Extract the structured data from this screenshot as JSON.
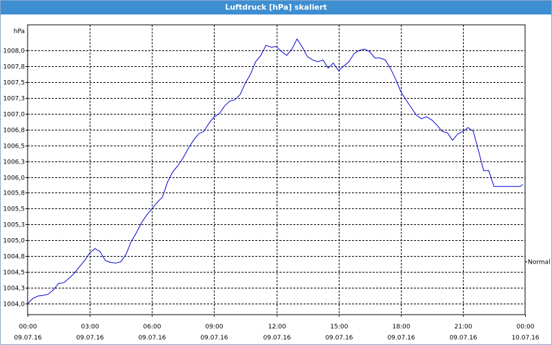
{
  "window": {
    "title": "Luftdruck [hPa] skaliert"
  },
  "chart_data": {
    "type": "line",
    "title": "Luftdruck [hPa] skaliert",
    "ylabel": "hPa",
    "xlabel": "",
    "ylim": [
      1003.8,
      1008.2
    ],
    "xlim": [
      0,
      24
    ],
    "grid": true,
    "line_color": "#0000cc",
    "y_ticks": [
      "1004,0",
      "1004,3",
      "1004,5",
      "1004,8",
      "1005,0",
      "1005,3",
      "1005,5",
      "1005,8",
      "1006,0",
      "1006,3",
      "1006,5",
      "1006,8",
      "1007,0",
      "1007,3",
      "1007,5",
      "1007,8",
      "1008,0"
    ],
    "x_ticks": [
      {
        "time": "00:00",
        "date": "09.07.16"
      },
      {
        "time": "03:00",
        "date": "09.07.16"
      },
      {
        "time": "06:00",
        "date": "09.07.16"
      },
      {
        "time": "09:00",
        "date": "09.07.16"
      },
      {
        "time": "12:00",
        "date": "09.07.16"
      },
      {
        "time": "15:00",
        "date": "09.07.16"
      },
      {
        "time": "18:00",
        "date": "09.07.16"
      },
      {
        "time": "21:00",
        "date": "09.07.16"
      },
      {
        "time": "00:00",
        "date": "10.07.16"
      }
    ],
    "annotation": "Normal",
    "annotation_value": 1004.67,
    "series": [
      {
        "x": [
          0,
          0.25,
          0.5,
          0.75,
          1.0,
          1.25,
          1.5,
          1.75,
          2.0,
          2.25,
          2.5,
          2.75,
          3.0,
          3.25,
          3.5,
          3.75,
          4.0,
          4.25,
          4.5,
          4.75,
          5.0,
          5.25,
          5.5,
          5.75,
          6.0,
          6.25,
          6.5,
          6.75,
          7.0,
          7.25,
          7.5,
          7.75,
          8.0,
          8.25,
          8.5,
          8.75,
          9.0,
          9.25,
          9.5,
          9.75,
          10.0,
          10.25,
          10.5,
          10.75,
          11.0,
          11.25,
          11.5,
          11.75,
          12.0,
          12.25,
          12.5,
          12.75,
          13.0,
          13.25,
          13.5,
          13.75,
          14.0,
          14.25,
          14.5,
          14.75,
          15.0,
          15.25,
          15.5,
          15.75,
          16.0,
          16.25,
          16.5,
          16.75,
          17.0,
          17.25,
          17.5,
          17.75,
          18.0,
          18.25,
          18.5,
          18.75,
          19.0,
          19.25,
          19.5,
          19.75,
          20.0,
          20.25,
          20.5,
          20.75,
          21.0,
          21.25,
          21.5,
          21.75,
          22.0,
          22.25,
          22.5,
          22.75,
          23.0,
          23.25,
          23.5,
          23.75,
          23.9
        ],
        "y": [
          1004.0,
          1004.08,
          1004.12,
          1004.13,
          1004.15,
          1004.22,
          1004.32,
          1004.33,
          1004.4,
          1004.48,
          1004.58,
          1004.68,
          1004.8,
          1004.87,
          1004.82,
          1004.68,
          1004.65,
          1004.64,
          1004.66,
          1004.78,
          1004.98,
          1005.12,
          1005.28,
          1005.4,
          1005.5,
          1005.6,
          1005.68,
          1005.92,
          1006.08,
          1006.18,
          1006.3,
          1006.45,
          1006.58,
          1006.68,
          1006.72,
          1006.85,
          1006.95,
          1007.0,
          1007.12,
          1007.2,
          1007.22,
          1007.3,
          1007.48,
          1007.62,
          1007.82,
          1007.92,
          1008.08,
          1008.05,
          1008.06,
          1007.98,
          1007.92,
          1008.02,
          1008.18,
          1008.05,
          1007.9,
          1007.85,
          1007.82,
          1007.85,
          1007.72,
          1007.8,
          1007.68,
          1007.75,
          1007.82,
          1007.95,
          1008.0,
          1008.02,
          1007.98,
          1007.88,
          1007.88,
          1007.85,
          1007.72,
          1007.55,
          1007.35,
          1007.22,
          1007.1,
          1006.98,
          1006.92,
          1006.95,
          1006.9,
          1006.82,
          1006.72,
          1006.7,
          1006.58,
          1006.68,
          1006.72,
          1006.78,
          1006.72,
          1006.42,
          1006.1,
          1006.1,
          1005.85,
          1005.85,
          1005.85,
          1005.85,
          1005.85,
          1005.85,
          1005.88
        ]
      }
    ]
  }
}
